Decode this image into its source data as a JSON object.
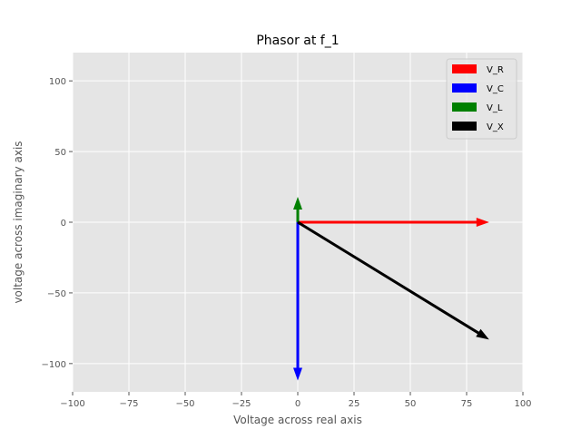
{
  "chart_data": {
    "type": "phasor",
    "title": "Phasor at f_1",
    "xlabel": "Voltage across real axis",
    "ylabel": "voltage across imaginary axis",
    "xlim": [
      -100,
      100
    ],
    "ylim": [
      -120,
      120
    ],
    "x_ticks": [
      -100,
      -75,
      -50,
      -25,
      0,
      25,
      50,
      75,
      100
    ],
    "y_ticks": [
      -100,
      -50,
      0,
      50,
      100
    ],
    "x_tick_labels": [
      "−100",
      "−75",
      "−50",
      "−25",
      "0",
      "25",
      "50",
      "75",
      "100"
    ],
    "y_tick_labels": [
      "−100",
      "−50",
      "0",
      "50",
      "100"
    ],
    "grid": true,
    "legend_position": "top-right",
    "series": [
      {
        "name": "V_R",
        "color": "#ff0000",
        "x": 85,
        "y": 0
      },
      {
        "name": "V_C",
        "color": "#0000ff",
        "x": 0,
        "y": -112
      },
      {
        "name": "V_L",
        "color": "#008000",
        "x": 0,
        "y": 18
      },
      {
        "name": "V_X",
        "color": "#000000",
        "x": 85,
        "y": -83
      }
    ]
  }
}
